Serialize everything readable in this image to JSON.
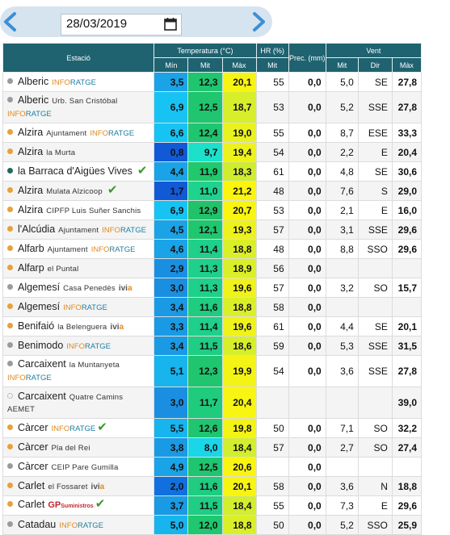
{
  "date_nav": {
    "prev_label": "‹",
    "next_label": "›",
    "date_value": "28/03/2019",
    "calendar_icon": "calendar-icon"
  },
  "header": {
    "station": "Estació",
    "temperature": "Temperatura (°C)",
    "humidity": "HR (%)",
    "precip": "Prec. (mm)",
    "wind": "Vent",
    "temp_min": "Mín",
    "temp_mid": "Mit",
    "temp_max": "Màx",
    "hr_mid": "Mit",
    "wind_mid": "Mit",
    "wind_dir": "Dir",
    "wind_max": "Màx"
  },
  "colors": {
    "header_bg": "#1f6270",
    "min_blue": "#1aa3e6",
    "min_dark": "#1259d6",
    "mid_green": "#2ecc71",
    "max_yellow": "#f4f21c",
    "dot_grey": "#9b9b9b",
    "dot_orange": "#e8a13a",
    "dot_teal": "#1f6b5d",
    "check_green": "#3a9a2a"
  },
  "rows": [
    {
      "name": "Alberic",
      "sub": "",
      "org": "INFORATGE",
      "check": false,
      "dot": "grey",
      "tall": false,
      "min": "3,5",
      "min_color": "#1aa3e6",
      "mit": "12,3",
      "mit_color": "#1fc56f",
      "max": "20,1",
      "max_color": "#f7f414",
      "hr": "55",
      "prec": "0,0",
      "wind_mit": "5,0",
      "wind_dir": "SE",
      "wind_max": "27,8"
    },
    {
      "name": "Alberic",
      "sub": "Urb. San Cristóbal",
      "org": "INFORATGE",
      "check": false,
      "dot": "grey",
      "tall": true,
      "min": "6,9",
      "min_color": "#17c3f2",
      "mit": "12,5",
      "mit_color": "#1fc56f",
      "max": "18,7",
      "max_color": "#d7ef2a",
      "hr": "53",
      "prec": "0,0",
      "wind_mit": "5,2",
      "wind_dir": "SSE",
      "wind_max": "27,8"
    },
    {
      "name": "Alzira",
      "sub": "Ajuntament",
      "org": "INFORATGE",
      "check": false,
      "dot": "orange",
      "tall": false,
      "min": "6,6",
      "min_color": "#17c3f2",
      "mit": "12,4",
      "mit_color": "#1fc56f",
      "max": "19,0",
      "max_color": "#e8f21f",
      "hr": "55",
      "prec": "0,0",
      "wind_mit": "8,7",
      "wind_dir": "ESE",
      "wind_max": "33,3"
    },
    {
      "name": "Alzira",
      "sub": "la Murta",
      "org": "",
      "check": false,
      "dot": "orange",
      "tall": false,
      "min": "0,8",
      "min_color": "#1259d6",
      "mit": "9,7",
      "mit_color": "#1ce0ca",
      "max": "19,4",
      "max_color": "#eef21c",
      "hr": "54",
      "prec": "0,0",
      "wind_mit": "2,2",
      "wind_dir": "E",
      "wind_max": "20,4"
    },
    {
      "name": "la Barraca d'Aigües Vives",
      "sub": "",
      "org": "",
      "check": true,
      "dot": "teal",
      "tall": false,
      "min": "4,4",
      "min_color": "#1aa3e6",
      "mit": "11,9",
      "mit_color": "#1fc96c",
      "max": "18,3",
      "max_color": "#cfed2e",
      "hr": "61",
      "prec": "0,0",
      "wind_mit": "4,8",
      "wind_dir": "SE",
      "wind_max": "30,6"
    },
    {
      "name": "Alzira",
      "sub": "Mulata Alzicoop",
      "org": "",
      "check": true,
      "dot": "orange",
      "tall": false,
      "min": "1,7",
      "min_color": "#1259d6",
      "mit": "11,0",
      "mit_color": "#1fd38f",
      "max": "21,2",
      "max_color": "#fbf50e",
      "hr": "48",
      "prec": "0,0",
      "wind_mit": "7,6",
      "wind_dir": "S",
      "wind_max": "29,0"
    },
    {
      "name": "Alzira",
      "sub": "CIPFP Luis Suñer Sanchis",
      "org": "",
      "check": false,
      "dot": "orange",
      "tall": false,
      "min": "6,9",
      "min_color": "#17c3f2",
      "mit": "12,9",
      "mit_color": "#21c26a",
      "max": "20,7",
      "max_color": "#f9f511",
      "hr": "53",
      "prec": "0,0",
      "wind_mit": "2,1",
      "wind_dir": "E",
      "wind_max": "16,0"
    },
    {
      "name": "l'Alcúdia",
      "sub": "Ajuntament",
      "org": "INFORATGE",
      "check": false,
      "dot": "orange",
      "tall": false,
      "min": "4,5",
      "min_color": "#1aa3e6",
      "mit": "12,1",
      "mit_color": "#1fc76e",
      "max": "19,3",
      "max_color": "#eef21c",
      "hr": "57",
      "prec": "0,0",
      "wind_mit": "3,1",
      "wind_dir": "SSE",
      "wind_max": "29,6"
    },
    {
      "name": "Alfarb",
      "sub": "Ajuntament",
      "org": "INFORATGE",
      "check": false,
      "dot": "orange",
      "tall": false,
      "min": "4,6",
      "min_color": "#1aa3e6",
      "mit": "11,4",
      "mit_color": "#1fd08a",
      "max": "18,8",
      "max_color": "#dbef29",
      "hr": "48",
      "prec": "0,0",
      "wind_mit": "8,8",
      "wind_dir": "SSO",
      "wind_max": "29,6"
    },
    {
      "name": "Alfarp",
      "sub": "el Puntal",
      "org": "",
      "check": false,
      "dot": "orange",
      "tall": false,
      "min": "2,9",
      "min_color": "#1a8fe2",
      "mit": "11,3",
      "mit_color": "#1fd08a",
      "max": "18,9",
      "max_color": "#dbef29",
      "hr": "56",
      "prec": "0,0",
      "wind_mit": "",
      "wind_dir": "",
      "wind_max": ""
    },
    {
      "name": "Algemesí",
      "sub": "Casa Penedès",
      "org": "IVIA",
      "check": false,
      "dot": "grey",
      "tall": false,
      "min": "3,0",
      "min_color": "#1a8fe2",
      "mit": "11,3",
      "mit_color": "#1fd08a",
      "max": "19,6",
      "max_color": "#f0f21b",
      "hr": "57",
      "prec": "0,0",
      "wind_mit": "3,2",
      "wind_dir": "SO",
      "wind_max": "15,7"
    },
    {
      "name": "Algemesí",
      "sub": "",
      "org": "INFORATGE",
      "check": false,
      "dot": "orange",
      "tall": false,
      "min": "3,4",
      "min_color": "#1a9ae4",
      "mit": "11,6",
      "mit_color": "#1fcc80",
      "max": "18,8",
      "max_color": "#dbef29",
      "hr": "58",
      "prec": "0,0",
      "wind_mit": "",
      "wind_dir": "",
      "wind_max": ""
    },
    {
      "name": "Benifaió",
      "sub": "la Belenguera",
      "org": "IVIA",
      "check": false,
      "dot": "orange",
      "tall": false,
      "min": "3,3",
      "min_color": "#1a9ae4",
      "mit": "11,4",
      "mit_color": "#1fd08a",
      "max": "19,6",
      "max_color": "#f0f21b",
      "hr": "61",
      "prec": "0,0",
      "wind_mit": "4,4",
      "wind_dir": "SE",
      "wind_max": "20,1"
    },
    {
      "name": "Benimodo",
      "sub": "",
      "org": "INFORATGE",
      "check": false,
      "dot": "grey",
      "tall": false,
      "min": "3,4",
      "min_color": "#1a9ae4",
      "mit": "11,5",
      "mit_color": "#1fcd84",
      "max": "18,6",
      "max_color": "#d7ef2a",
      "hr": "59",
      "prec": "0,0",
      "wind_mit": "5,3",
      "wind_dir": "SSE",
      "wind_max": "31,5"
    },
    {
      "name": "Carcaixent",
      "sub": "la Muntanyeta",
      "org": "INFORATGE",
      "check": false,
      "dot": "grey",
      "tall": true,
      "min": "5,1",
      "min_color": "#17b4ee",
      "mit": "12,3",
      "mit_color": "#1fc56f",
      "max": "19,9",
      "max_color": "#f4f316",
      "hr": "54",
      "prec": "0,0",
      "wind_mit": "3,6",
      "wind_dir": "SSE",
      "wind_max": "27,8"
    },
    {
      "name": "Carcaixent",
      "sub": "Quatre Camins",
      "org": "AEMET",
      "check": false,
      "dot": "dotted",
      "tall": true,
      "min": "3,0",
      "min_color": "#1a8fe2",
      "mit": "11,7",
      "mit_color": "#1fcb7c",
      "max": "20,4",
      "max_color": "#f8f512",
      "hr": "",
      "prec": "",
      "wind_mit": "",
      "wind_dir": "",
      "wind_max": "39,0"
    },
    {
      "name": "Càrcer",
      "sub": "",
      "org": "INFORATGE",
      "check": true,
      "dot": "orange",
      "tall": false,
      "min": "5,5",
      "min_color": "#17b4ee",
      "mit": "12,6",
      "mit_color": "#1fc56f",
      "max": "19,8",
      "max_color": "#f4f316",
      "hr": "50",
      "prec": "0,0",
      "wind_mit": "7,1",
      "wind_dir": "SO",
      "wind_max": "32,2"
    },
    {
      "name": "Càrcer",
      "sub": "Pla del Rei",
      "org": "",
      "check": false,
      "dot": "orange",
      "tall": false,
      "min": "3,8",
      "min_color": "#1a9ae4",
      "mit": "8,0",
      "mit_color": "#19d6e8",
      "max": "18,4",
      "max_color": "#d3ee2c",
      "hr": "57",
      "prec": "0,0",
      "wind_mit": "2,7",
      "wind_dir": "SO",
      "wind_max": "27,4"
    },
    {
      "name": "Càrcer",
      "sub": "CEIP Pare Gumilla",
      "org": "",
      "check": false,
      "dot": "grey",
      "tall": false,
      "min": "4,9",
      "min_color": "#1aa3e6",
      "mit": "12,5",
      "mit_color": "#1fc56f",
      "max": "20,6",
      "max_color": "#f9f511",
      "hr": "",
      "prec": "0,0",
      "wind_mit": "",
      "wind_dir": "",
      "wind_max": ""
    },
    {
      "name": "Carlet",
      "sub": "el Fossaret",
      "org": "IVIA",
      "check": false,
      "dot": "orange",
      "tall": false,
      "min": "2,0",
      "min_color": "#1270de",
      "mit": "11,6",
      "mit_color": "#1fcc80",
      "max": "20,1",
      "max_color": "#f7f414",
      "hr": "58",
      "prec": "0,0",
      "wind_mit": "3,6",
      "wind_dir": "N",
      "wind_max": "18,8"
    },
    {
      "name": "Carlet",
      "sub": "",
      "org": "GP",
      "check": true,
      "dot": "orange",
      "tall": false,
      "min": "3,7",
      "min_color": "#1a9ae4",
      "mit": "11,5",
      "mit_color": "#1fcd84",
      "max": "18,4",
      "max_color": "#d3ee2c",
      "hr": "55",
      "prec": "0,0",
      "wind_mit": "7,3",
      "wind_dir": "E",
      "wind_max": "29,6"
    },
    {
      "name": "Catadau",
      "sub": "",
      "org": "INFORATGE",
      "check": false,
      "dot": "grey",
      "tall": false,
      "min": "5,0",
      "min_color": "#17b4ee",
      "mit": "12,0",
      "mit_color": "#1fc76e",
      "max": "18,8",
      "max_color": "#dbef29",
      "hr": "50",
      "prec": "0,0",
      "wind_mit": "5,2",
      "wind_dir": "SSO",
      "wind_max": "25,9"
    }
  ]
}
